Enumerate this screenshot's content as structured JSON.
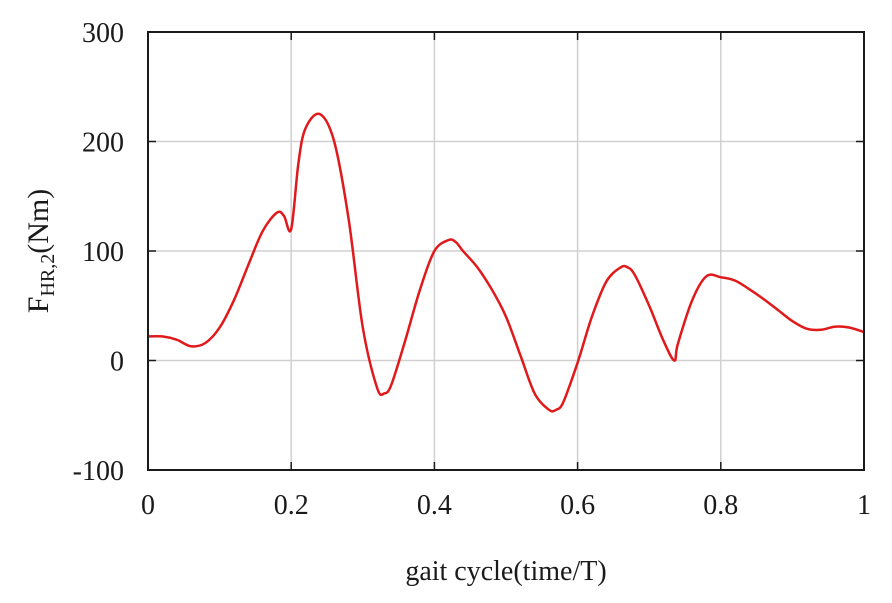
{
  "chart_data": {
    "type": "line",
    "xlabel": "gait cycle(time/T)",
    "ylabel": {
      "main": "F",
      "sub": "HR,2",
      "unit": "(Nm)"
    },
    "xlim": [
      0,
      1
    ],
    "ylim": [
      -100,
      300
    ],
    "xticks": [
      0,
      0.2,
      0.4,
      0.6,
      0.8,
      1
    ],
    "xtick_labels": [
      "0",
      "0.2",
      "0.4",
      "0.6",
      "0.8",
      "1"
    ],
    "yticks": [
      -100,
      0,
      100,
      200,
      300
    ],
    "ytick_labels": [
      "-100",
      "0",
      "100",
      "200",
      "300"
    ],
    "grid": true,
    "series": [
      {
        "color": "#e0191b",
        "x": [
          0,
          0.02,
          0.04,
          0.06,
          0.08,
          0.1,
          0.12,
          0.14,
          0.16,
          0.18,
          0.19,
          0.2,
          0.21,
          0.22,
          0.24,
          0.26,
          0.28,
          0.3,
          0.32,
          0.33,
          0.34,
          0.36,
          0.38,
          0.4,
          0.42,
          0.43,
          0.44,
          0.46,
          0.48,
          0.5,
          0.52,
          0.54,
          0.56,
          0.57,
          0.58,
          0.6,
          0.62,
          0.64,
          0.66,
          0.67,
          0.68,
          0.7,
          0.72,
          0.735,
          0.74,
          0.76,
          0.78,
          0.8,
          0.82,
          0.84,
          0.86,
          0.88,
          0.9,
          0.92,
          0.94,
          0.96,
          0.98,
          1.0
        ],
        "y": [
          22,
          22,
          19,
          13,
          16,
          30,
          55,
          87,
          118,
          135,
          132,
          120,
          180,
          212,
          225,
          200,
          130,
          30,
          -25,
          -30,
          -22,
          20,
          65,
          100,
          110,
          108,
          100,
          85,
          65,
          40,
          5,
          -30,
          -45,
          -45,
          -38,
          -2,
          40,
          72,
          85,
          85,
          78,
          50,
          18,
          0,
          15,
          55,
          77,
          76,
          73,
          65,
          56,
          46,
          36,
          29,
          28,
          31,
          30,
          26
        ]
      }
    ]
  }
}
